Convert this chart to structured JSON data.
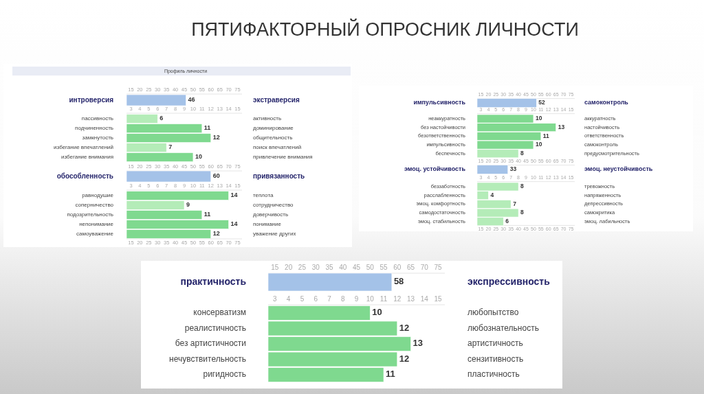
{
  "chart_data": [
    {
      "type": "bar",
      "orientation": "horizontal",
      "title": "ПЯТИФАКТОРНЫЙ ОПРОСНИК ЛИЧНОСТИ",
      "subtitle": "Профиль личности",
      "categories": [
        "интроверсия"
      ],
      "y2_categories": [
        "экстраверсия"
      ],
      "values": [
        46
      ],
      "colors": [
        "#a4c2e8"
      ],
      "xlim": [
        12.5,
        77.5
      ],
      "xticks": [
        15,
        20,
        25,
        30,
        35,
        40,
        45,
        50,
        55,
        60,
        65,
        70,
        75
      ],
      "data_labels": true
    },
    {
      "type": "bar",
      "orientation": "horizontal",
      "categories": [
        "пассивность",
        "подчиненность",
        "замкнутость",
        "избегание впечатлений",
        "избегание внимания"
      ],
      "y2_categories": [
        "активность",
        "доминирование",
        "общительность",
        "поиск впечатлений",
        "привлечение внимания"
      ],
      "values": [
        6,
        11,
        12,
        7,
        10
      ],
      "colors": [
        "#b4ecb8",
        "#7fd98f",
        "#7fd98f",
        "#b4ecb8",
        "#7fd98f"
      ],
      "xlim": [
        2.5,
        15.5
      ],
      "xticks": [
        3,
        4,
        5,
        6,
        7,
        8,
        9,
        10,
        11,
        12,
        13,
        14,
        15
      ],
      "data_labels": true
    },
    {
      "type": "bar",
      "orientation": "horizontal",
      "categories": [
        "обособленность"
      ],
      "y2_categories": [
        "привязанность"
      ],
      "values": [
        60
      ],
      "colors": [
        "#a4c2e8"
      ],
      "xlim": [
        12.5,
        77.5
      ],
      "xticks": [
        15,
        20,
        25,
        30,
        35,
        40,
        45,
        50,
        55,
        60,
        65,
        70,
        75
      ],
      "data_labels": true
    },
    {
      "type": "bar",
      "orientation": "horizontal",
      "categories": [
        "равнодушие",
        "соперничество",
        "подозрительность",
        "непонимание",
        "самоуважение"
      ],
      "y2_categories": [
        "теплота",
        "сотрудничество",
        "доверчивость",
        "понимание",
        "уважение других"
      ],
      "values": [
        14,
        9,
        11,
        14,
        12
      ],
      "colors": [
        "#7fd98f",
        "#b4ecb8",
        "#7fd98f",
        "#7fd98f",
        "#7fd98f"
      ],
      "xlim": [
        2.5,
        15.5
      ],
      "xticks": [
        3,
        4,
        5,
        6,
        7,
        8,
        9,
        10,
        11,
        12,
        13,
        14,
        15
      ],
      "x2lim": [
        12.5,
        77.5
      ],
      "x2ticks": [
        15,
        20,
        25,
        30,
        35,
        40,
        45,
        50,
        55,
        60,
        65,
        70,
        75
      ],
      "data_labels": true
    },
    {
      "type": "bar",
      "orientation": "horizontal",
      "categories": [
        "импульсивность"
      ],
      "y2_categories": [
        "самоконтроль"
      ],
      "values": [
        52
      ],
      "colors": [
        "#a4c2e8"
      ],
      "xlim": [
        12.5,
        77.5
      ],
      "xticks": [
        15,
        20,
        25,
        30,
        35,
        40,
        45,
        50,
        55,
        60,
        65,
        70,
        75
      ],
      "data_labels": true
    },
    {
      "type": "bar",
      "orientation": "horizontal",
      "categories": [
        "неаккуратность",
        "без настойчивости",
        "безответственность",
        "импульсивность",
        "беспечность"
      ],
      "y2_categories": [
        "аккуратность",
        "настойчивость",
        "ответственность",
        "самоконтроль",
        "предусмотрительность"
      ],
      "values": [
        10,
        13,
        11,
        10,
        8
      ],
      "colors": [
        "#7fd98f",
        "#7fd98f",
        "#7fd98f",
        "#7fd98f",
        "#b4ecb8"
      ],
      "xlim": [
        2.5,
        15.5
      ],
      "xticks": [
        3,
        4,
        5,
        6,
        7,
        8,
        9,
        10,
        11,
        12,
        13,
        14,
        15
      ],
      "data_labels": true
    },
    {
      "type": "bar",
      "orientation": "horizontal",
      "categories": [
        "эмоц. устойчивость"
      ],
      "y2_categories": [
        "эмоц. неустойчивость"
      ],
      "values": [
        33
      ],
      "colors": [
        "#a4c2e8"
      ],
      "xlim": [
        12.5,
        77.5
      ],
      "xticks": [
        15,
        20,
        25,
        30,
        35,
        40,
        45,
        50,
        55,
        60,
        65,
        70,
        75
      ],
      "data_labels": true
    },
    {
      "type": "bar",
      "orientation": "horizontal",
      "categories": [
        "беззаботность",
        "расслабленность",
        "эмоц. комфортность",
        "самодостаточность",
        "эмоц. стабильность"
      ],
      "y2_categories": [
        "тревожность",
        "напряженность",
        "депрессивность",
        "самокритика",
        "эмоц. лабильность"
      ],
      "values": [
        8,
        4,
        7,
        8,
        6
      ],
      "colors": [
        "#b4ecb8",
        "#b4ecb8",
        "#b4ecb8",
        "#b4ecb8",
        "#b4ecb8"
      ],
      "xlim": [
        2.5,
        15.5
      ],
      "xticks": [
        3,
        4,
        5,
        6,
        7,
        8,
        9,
        10,
        11,
        12,
        13,
        14,
        15
      ],
      "x2lim": [
        12.5,
        77.5
      ],
      "x2ticks": [
        15,
        20,
        25,
        30,
        35,
        40,
        45,
        50,
        55,
        60,
        65,
        70,
        75
      ],
      "data_labels": true
    },
    {
      "type": "bar",
      "orientation": "horizontal",
      "categories": [
        "практичность"
      ],
      "y2_categories": [
        "экспрессивность"
      ],
      "values": [
        58
      ],
      "colors": [
        "#a4c2e8"
      ],
      "xlim": [
        12.5,
        77.5
      ],
      "xticks": [
        15,
        20,
        25,
        30,
        35,
        40,
        45,
        50,
        55,
        60,
        65,
        70,
        75
      ],
      "data_labels": true
    },
    {
      "type": "bar",
      "orientation": "horizontal",
      "categories": [
        "консерватизм",
        "реалистичность",
        "без артистичности",
        "нечувствительность",
        "ригидность"
      ],
      "y2_categories": [
        "любопытство",
        "любознательность",
        "артистичность",
        "сензитивность",
        "пластичность"
      ],
      "values": [
        10,
        12,
        13,
        12,
        11
      ],
      "colors": [
        "#7fd98f",
        "#7fd98f",
        "#7fd98f",
        "#7fd98f",
        "#7fd98f"
      ],
      "xlim": [
        2.5,
        15.5
      ],
      "xticks": [
        3,
        4,
        5,
        6,
        7,
        8,
        9,
        10,
        11,
        12,
        13,
        14,
        15
      ],
      "data_labels": true
    }
  ]
}
